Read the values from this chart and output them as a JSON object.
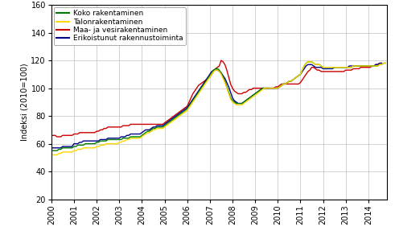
{
  "title": "",
  "ylabel": "Indeksi (2010=100)",
  "ylim": [
    20,
    160
  ],
  "yticks": [
    20,
    40,
    60,
    80,
    100,
    120,
    140,
    160
  ],
  "xlim": [
    2000.0,
    2014.83
  ],
  "xtick_labels": [
    "2000",
    "2001",
    "2002",
    "2003",
    "2004",
    "2005",
    "2006",
    "2007",
    "2008",
    "2009",
    "2010",
    "2011",
    "2012",
    "2013",
    "2014"
  ],
  "xtick_positions": [
    2000,
    2001,
    2002,
    2003,
    2004,
    2005,
    2006,
    2007,
    2008,
    2009,
    2010,
    2011,
    2012,
    2013,
    2014
  ],
  "legend_labels": [
    "Koko rakentaminen",
    "Talonrakentaminen",
    "Maa- ja vesirakentaminen",
    "Erikoistunut rakennustoiminta"
  ],
  "colors": [
    "#007A00",
    "#FFD700",
    "#CC0000",
    "#00008B"
  ],
  "linewidth": 1.0,
  "background_color": "#FFFFFF",
  "grid_color": "#C0C0C0",
  "series": {
    "koko": [
      55,
      55,
      55,
      55,
      56,
      56,
      57,
      57,
      57,
      57,
      57,
      57,
      58,
      58,
      59,
      59,
      59,
      59,
      60,
      60,
      60,
      60,
      60,
      60,
      61,
      61,
      62,
      62,
      62,
      62,
      63,
      63,
      63,
      63,
      63,
      63,
      63,
      63,
      64,
      64,
      64,
      64,
      65,
      65,
      65,
      65,
      65,
      65,
      66,
      67,
      68,
      69,
      69,
      70,
      71,
      71,
      72,
      72,
      72,
      72,
      73,
      74,
      75,
      76,
      77,
      78,
      79,
      80,
      81,
      82,
      83,
      84,
      85,
      87,
      89,
      91,
      93,
      95,
      97,
      99,
      101,
      103,
      105,
      107,
      109,
      111,
      113,
      114,
      114,
      113,
      111,
      108,
      105,
      101,
      97,
      93,
      91,
      90,
      89,
      89,
      89,
      89,
      90,
      91,
      92,
      93,
      94,
      95,
      96,
      97,
      98,
      99,
      100,
      100,
      100,
      100,
      100,
      100,
      100,
      100,
      100,
      101,
      102,
      103,
      103,
      104,
      105,
      105,
      106,
      107,
      108,
      109,
      110,
      113,
      116,
      118,
      119,
      119,
      119,
      118,
      117,
      117,
      117,
      116,
      115,
      115,
      115,
      115,
      115,
      115,
      115,
      115,
      115,
      115,
      115,
      115,
      115,
      115,
      115,
      115,
      116,
      116,
      116,
      116,
      116,
      116,
      116,
      116,
      116,
      116,
      116,
      116,
      116,
      116,
      117,
      117,
      118,
      118
    ],
    "talonrak": [
      52,
      52,
      52,
      52,
      53,
      53,
      54,
      54,
      54,
      54,
      54,
      54,
      55,
      55,
      56,
      56,
      56,
      57,
      57,
      57,
      57,
      57,
      57,
      57,
      58,
      58,
      59,
      59,
      59,
      60,
      60,
      60,
      60,
      60,
      60,
      60,
      61,
      61,
      62,
      62,
      63,
      63,
      64,
      64,
      64,
      64,
      64,
      64,
      65,
      66,
      67,
      68,
      68,
      69,
      70,
      70,
      71,
      71,
      71,
      71,
      72,
      73,
      74,
      75,
      76,
      77,
      78,
      79,
      80,
      81,
      82,
      83,
      84,
      86,
      88,
      90,
      92,
      94,
      96,
      98,
      100,
      102,
      104,
      106,
      108,
      110,
      112,
      113,
      113,
      112,
      110,
      107,
      104,
      100,
      96,
      92,
      90,
      89,
      88,
      88,
      88,
      88,
      89,
      90,
      91,
      92,
      93,
      94,
      95,
      96,
      97,
      98,
      99,
      100,
      100,
      100,
      100,
      100,
      100,
      100,
      100,
      101,
      102,
      103,
      103,
      104,
      105,
      105,
      106,
      107,
      108,
      109,
      110,
      113,
      116,
      118,
      119,
      119,
      119,
      118,
      117,
      117,
      117,
      116,
      115,
      115,
      115,
      115,
      115,
      115,
      115,
      115,
      115,
      115,
      115,
      115,
      115,
      115,
      115,
      115,
      116,
      116,
      116,
      116,
      116,
      116,
      116,
      116,
      116,
      116,
      116,
      116,
      116,
      116,
      117,
      117,
      118,
      118
    ],
    "maa_vesi": [
      66,
      66,
      66,
      65,
      65,
      65,
      66,
      66,
      66,
      66,
      66,
      66,
      67,
      67,
      67,
      68,
      68,
      68,
      68,
      68,
      68,
      68,
      68,
      68,
      69,
      69,
      70,
      70,
      71,
      71,
      72,
      72,
      72,
      72,
      72,
      72,
      72,
      72,
      73,
      73,
      73,
      73,
      74,
      74,
      74,
      74,
      74,
      74,
      74,
      74,
      74,
      74,
      74,
      74,
      74,
      74,
      74,
      74,
      74,
      74,
      75,
      76,
      77,
      78,
      79,
      80,
      81,
      82,
      83,
      84,
      85,
      86,
      87,
      90,
      93,
      96,
      98,
      100,
      102,
      103,
      104,
      105,
      106,
      107,
      108,
      110,
      112,
      114,
      115,
      116,
      120,
      119,
      117,
      113,
      108,
      103,
      100,
      98,
      97,
      96,
      96,
      96,
      97,
      97,
      98,
      99,
      99,
      100,
      100,
      100,
      100,
      100,
      100,
      100,
      100,
      100,
      100,
      100,
      100,
      101,
      101,
      102,
      103,
      103,
      103,
      103,
      103,
      103,
      103,
      103,
      103,
      103,
      104,
      106,
      108,
      110,
      112,
      113,
      115,
      115,
      114,
      113,
      113,
      112,
      112,
      112,
      112,
      112,
      112,
      112,
      112,
      112,
      112,
      112,
      112,
      112,
      113,
      113,
      113,
      113,
      114,
      114,
      114,
      114,
      115,
      115,
      115,
      115,
      115,
      115,
      116,
      116,
      117,
      117,
      118,
      118
    ],
    "erikois": [
      57,
      57,
      57,
      57,
      57,
      57,
      58,
      58,
      58,
      58,
      58,
      58,
      60,
      60,
      60,
      61,
      61,
      62,
      62,
      62,
      62,
      62,
      62,
      62,
      62,
      62,
      63,
      63,
      63,
      63,
      64,
      64,
      64,
      64,
      64,
      64,
      64,
      65,
      65,
      65,
      66,
      66,
      67,
      67,
      67,
      67,
      67,
      67,
      68,
      69,
      70,
      70,
      70,
      71,
      72,
      72,
      73,
      73,
      73,
      73,
      74,
      75,
      76,
      77,
      78,
      79,
      80,
      81,
      82,
      83,
      84,
      85,
      86,
      88,
      90,
      92,
      94,
      96,
      98,
      100,
      102,
      104,
      106,
      108,
      110,
      112,
      113,
      113,
      113,
      112,
      111,
      109,
      107,
      104,
      101,
      97,
      93,
      91,
      90,
      89,
      89,
      89,
      90,
      91,
      92,
      93,
      94,
      95,
      96,
      97,
      98,
      99,
      100,
      100,
      100,
      100,
      100,
      100,
      100,
      100,
      100,
      101,
      102,
      103,
      103,
      104,
      105,
      105,
      106,
      107,
      108,
      109,
      110,
      112,
      114,
      116,
      117,
      117,
      117,
      116,
      115,
      115,
      115,
      115,
      114,
      114,
      114,
      114,
      114,
      114,
      115,
      115,
      115,
      115,
      115,
      115,
      115,
      115,
      116,
      116,
      116,
      116,
      116,
      116,
      116,
      116,
      116,
      116,
      116,
      116,
      116,
      116,
      117,
      117,
      118,
      118
    ]
  }
}
